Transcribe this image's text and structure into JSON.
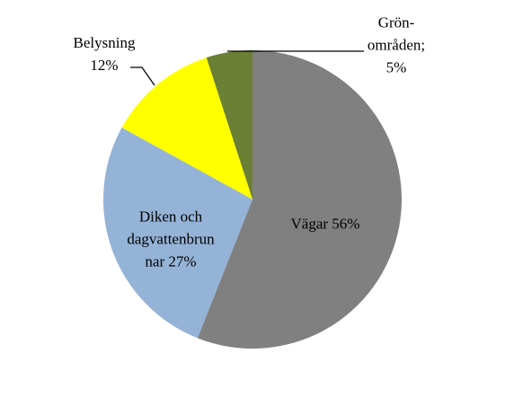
{
  "chart_data": {
    "type": "pie",
    "categories": [
      "Vägar",
      "Diken och dagvattenbrunnar",
      "Belysning",
      "Grön-områden;"
    ],
    "values": [
      56,
      27,
      12,
      5
    ],
    "value_labels": [
      "56%",
      "27%",
      "12%",
      "5%"
    ],
    "colors": [
      "#808080",
      "#95b3d7",
      "#ffff00",
      "#6b7f35"
    ]
  }
}
